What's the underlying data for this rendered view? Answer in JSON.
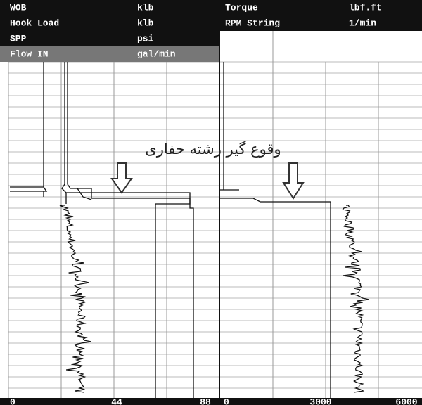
{
  "header": {
    "left": [
      [
        "WOB",
        "klb"
      ],
      [
        "Hook Load",
        "klb"
      ],
      [
        "SPP",
        "psi"
      ],
      [
        "Flow IN",
        "gal/min"
      ]
    ],
    "right": [
      [
        "Torque",
        "lbf.ft"
      ],
      [
        "RPM String",
        "1/min"
      ]
    ]
  },
  "annotation": "وقوع گیر رشته حفاری",
  "axis": {
    "left": [
      "0",
      "44",
      "88"
    ],
    "right": [
      "0",
      "3000",
      "6000"
    ]
  }
}
